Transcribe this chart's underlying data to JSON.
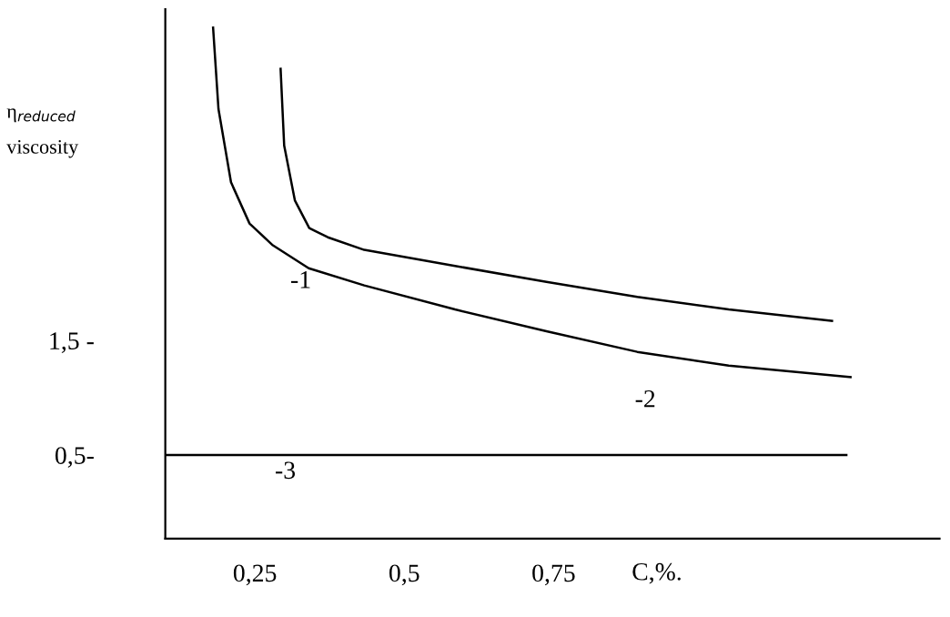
{
  "chart_data": {
    "type": "line",
    "ylabel": "η$_{reduced}$\nviscosity",
    "xlabel": "C,%.",
    "xlim": [
      0.1,
      1.396
    ],
    "ylim": [
      -0.23,
      4.39
    ],
    "xticks": [
      {
        "value": 0.25,
        "label": "0,25"
      },
      {
        "value": 0.5,
        "label": "0,5"
      },
      {
        "value": 0.75,
        "label": "0,75"
      }
    ],
    "yticks": [
      {
        "value": 0.5,
        "label": "0,5-"
      },
      {
        "value": 1.5,
        "label": "1,5 -"
      }
    ],
    "series": [
      {
        "color": "#000000",
        "x": [
          0.18,
          0.189,
          0.21,
          0.241,
          0.28,
          0.34,
          0.433,
          0.585,
          0.738,
          0.89,
          1.043,
          1.247
        ],
        "values": [
          4.23,
          3.52,
          2.88,
          2.52,
          2.33,
          2.13,
          1.98,
          1.77,
          1.58,
          1.4,
          1.28,
          1.18
        ]
      },
      {
        "color": "#000000",
        "x": [
          0.293,
          0.299,
          0.317,
          0.341,
          0.372,
          0.433,
          0.585,
          0.738,
          0.89,
          1.043,
          1.216
        ],
        "values": [
          3.87,
          3.2,
          2.72,
          2.48,
          2.4,
          2.29,
          2.15,
          2.01,
          1.88,
          1.77,
          1.67
        ]
      },
      {
        "color": "#000000",
        "x": [
          0.1,
          1.24
        ],
        "values": [
          0.5,
          0.5
        ]
      }
    ],
    "annotations": [
      "-1",
      "-2",
      "-3"
    ],
    "grid": false,
    "legend": false
  }
}
